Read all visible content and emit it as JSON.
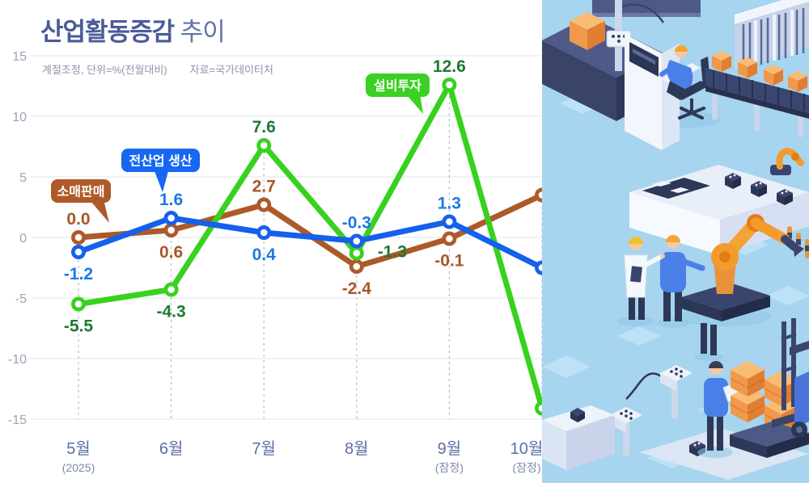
{
  "title": {
    "main": "산업활동증감",
    "tail": " 추이"
  },
  "subtitle": {
    "left": "계절조정, 단위=%(전월대비)",
    "right": "자료=국가데이터처"
  },
  "chart_data": {
    "type": "line",
    "categories": [
      "5월",
      "6월",
      "7월",
      "8월",
      "9월",
      "10월"
    ],
    "category_notes": [
      "(2025)",
      "",
      "",
      "",
      "(잠정)",
      "(잠정)"
    ],
    "yticks": [
      15,
      10,
      5,
      0,
      -5,
      -10,
      -15
    ],
    "ylim": [
      -15,
      15
    ],
    "grid": true,
    "legend_position": "inline-callouts",
    "series": [
      {
        "name": "소매판매",
        "color": "#ad5a28",
        "label_color": "#a8562a",
        "values": [
          0.0,
          0.6,
          2.7,
          -2.4,
          -0.1,
          3.5
        ],
        "point_labels": [
          "0.0",
          "0.6",
          "2.7",
          "-2.4",
          "-0.1"
        ],
        "label_pos": [
          "above",
          "below",
          "above",
          "below",
          "below"
        ],
        "final_label": {
          "value": "3.5",
          "suffix": "%"
        }
      },
      {
        "name": "전산업 생산",
        "color": "#1560ec",
        "label_color": "#1b78e8",
        "values": [
          -1.2,
          1.6,
          0.4,
          -0.3,
          1.3,
          -2.5
        ],
        "point_labels": [
          "-1.2",
          "1.6",
          "0.4",
          "-0.3",
          "1.3"
        ],
        "label_pos": [
          "below",
          "above",
          "below",
          "above",
          "above"
        ],
        "final_label": {
          "value": "-2.5",
          "suffix": "%"
        }
      },
      {
        "name": "설비투자",
        "color": "#38d11f",
        "label_color": "#1d7a34",
        "values": [
          -5.5,
          -4.3,
          7.6,
          -1.3,
          12.6,
          -14.1
        ],
        "point_labels": [
          "-5.5",
          "-4.3",
          "7.6",
          "-1.3",
          "12.6"
        ],
        "label_pos": [
          "below",
          "below",
          "above",
          "right",
          "above"
        ],
        "final_label": {
          "value": "-14.1",
          "suffix": "%"
        }
      }
    ],
    "callouts": [
      {
        "label": "소매판매",
        "color": "#ad5a28"
      },
      {
        "label": "전산업 생산",
        "color": "#1667f2"
      },
      {
        "label": "설비투자",
        "color": "#3bd024"
      }
    ]
  },
  "layout_colors": {
    "grid": "#e1e5ee",
    "dash": "#b3bdd0",
    "ytick_text": "#9aa3b6",
    "month_text": "#5c6da9",
    "note_text": "#7e88b2",
    "percent_suffix": "#8b94a3",
    "illustration_bg": "#a7d4ee"
  },
  "illustration": {
    "name": "isometric-smart-factory",
    "description": "factory scene with conveyor belts, orange boxes, robot arms, cabinets and workers"
  }
}
